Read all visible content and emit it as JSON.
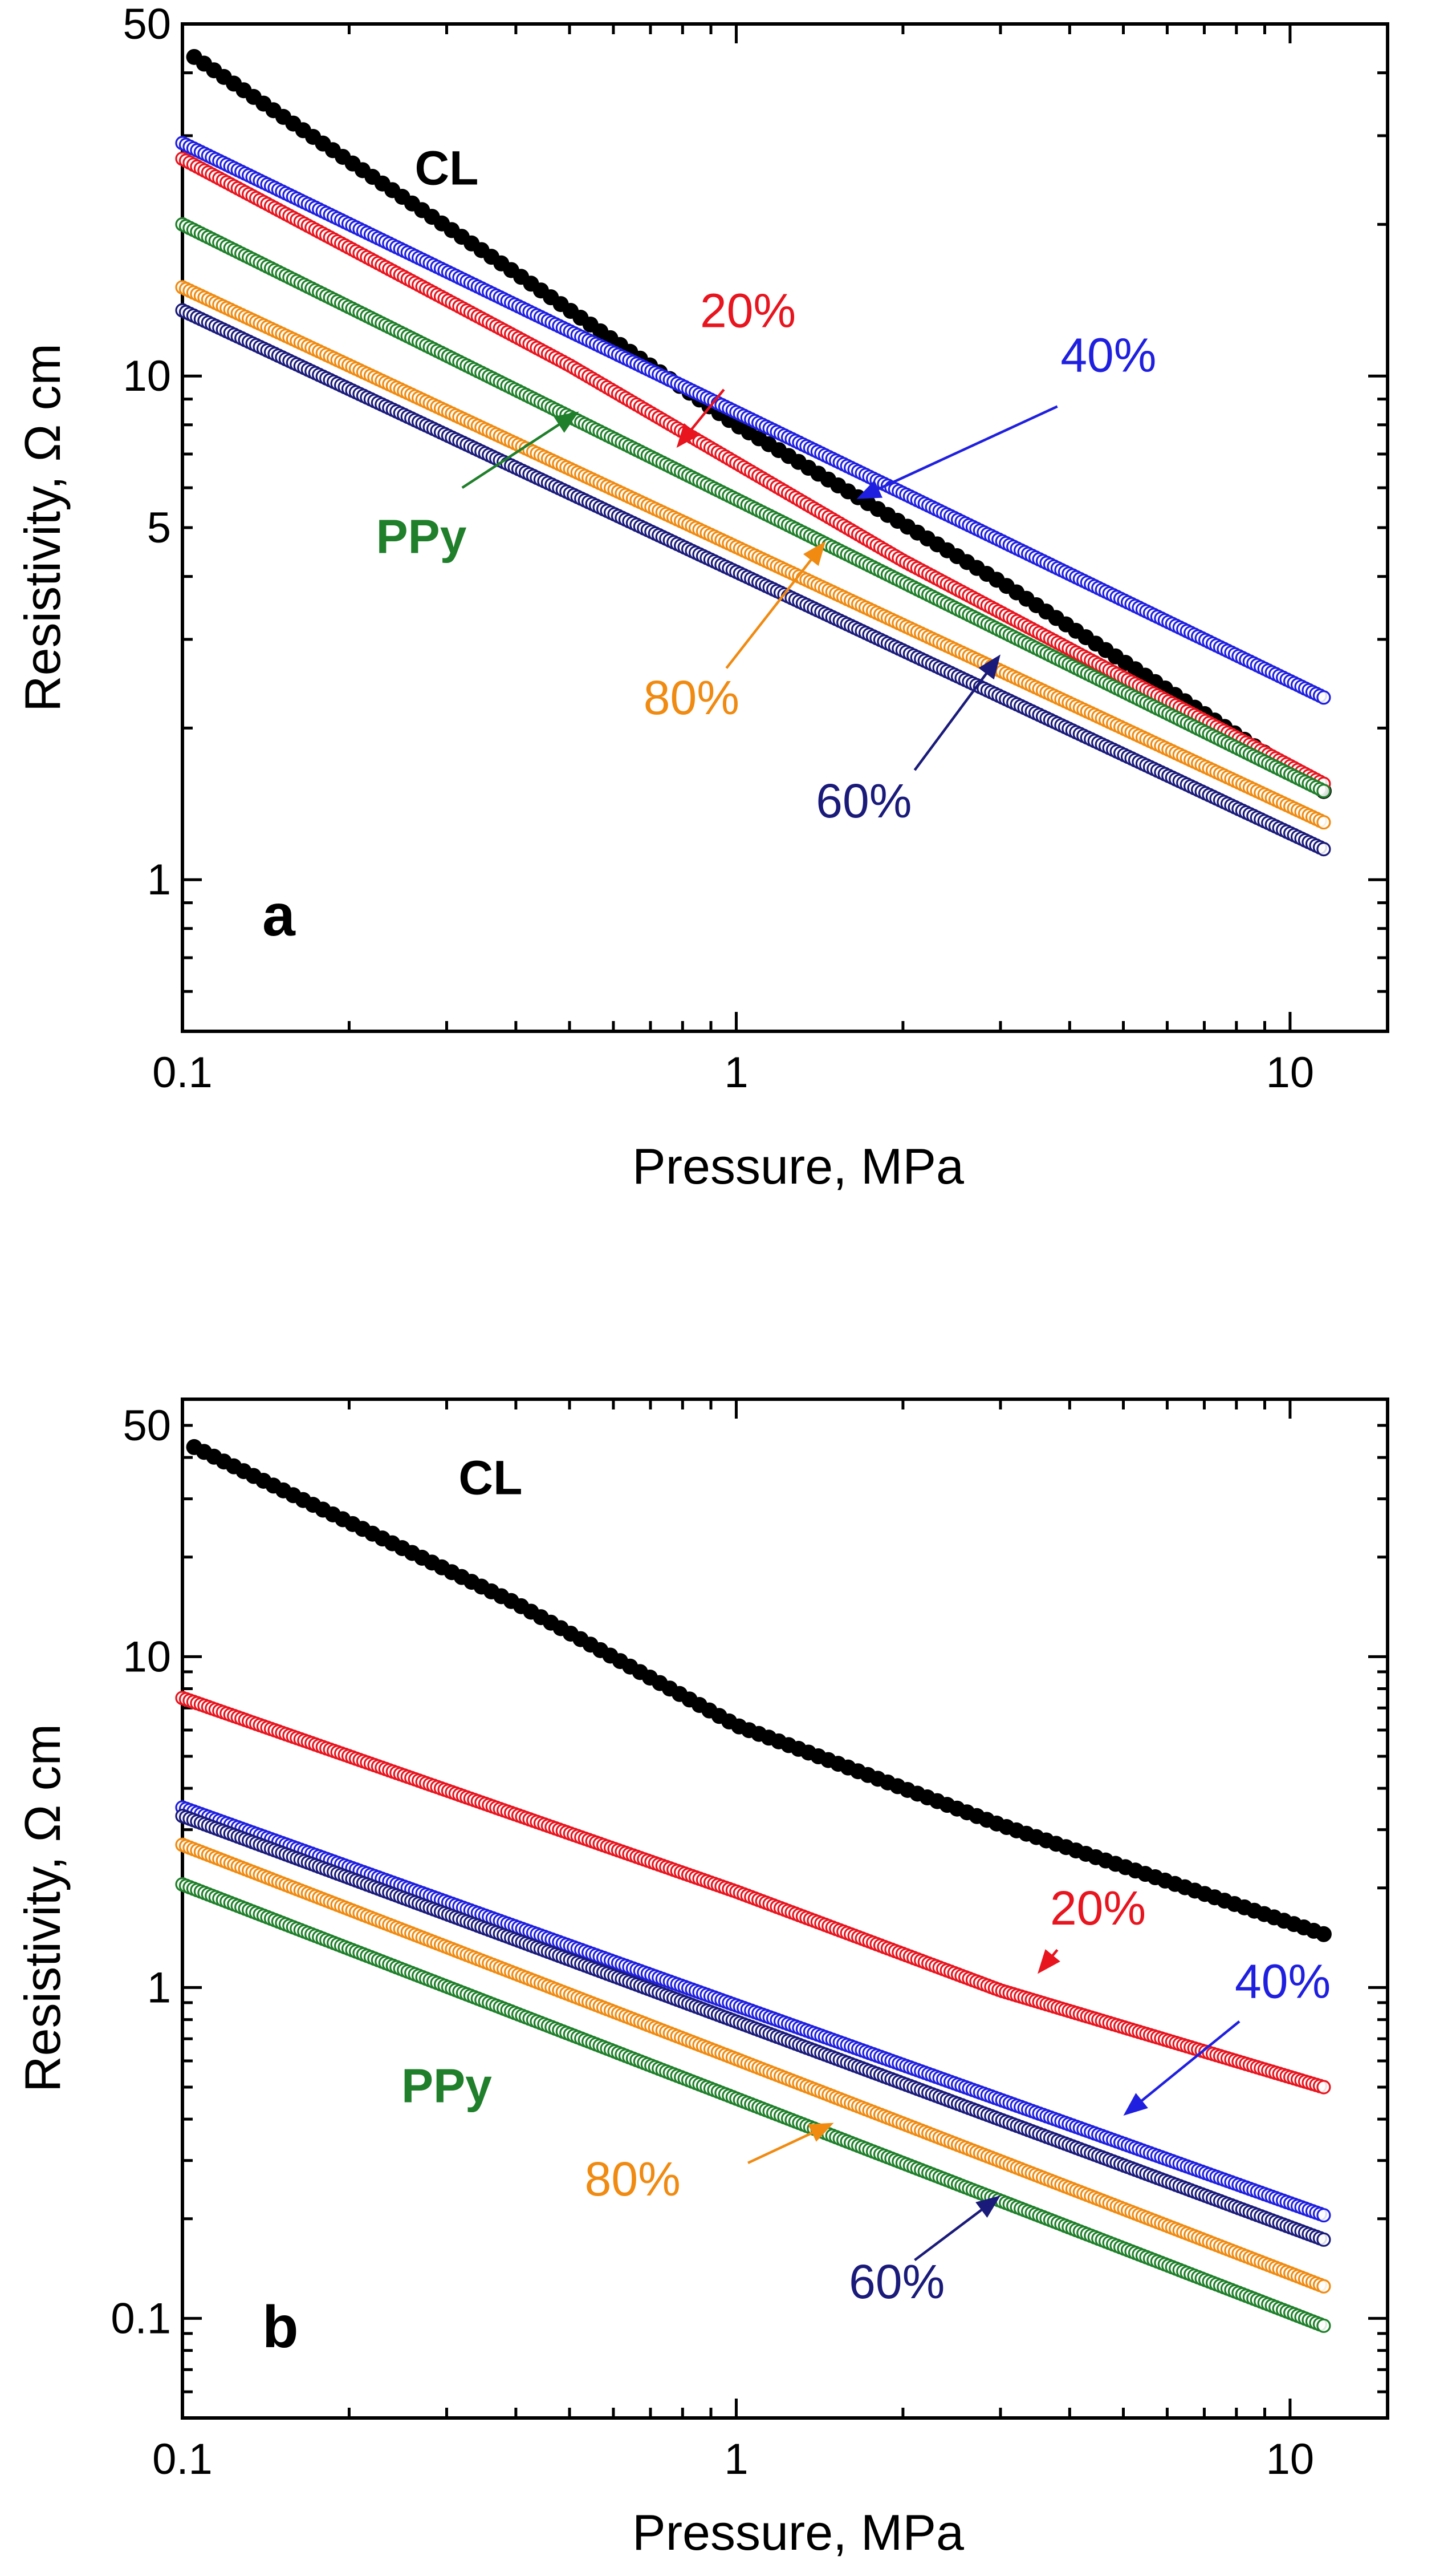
{
  "colors": {
    "CL": "#000000",
    "20%": "#e8141e",
    "40%": "#1f1fe0",
    "60%": "#1a1a7a",
    "80%": "#f08a10",
    "PPy": "#1f7f2a"
  },
  "chart_data": [
    {
      "type": "scatter",
      "panel": "a",
      "xscale": "log",
      "yscale": "log",
      "xlabel": "Pressure, MPa",
      "ylabel": "Resistivity, Ω cm",
      "xlim": [
        0.1,
        15
      ],
      "ylim": [
        0.5,
        50
      ],
      "xtick_labels": [
        {
          "value": 0.1,
          "label": "0.1"
        },
        {
          "value": 1,
          "label": "1"
        },
        {
          "value": 10,
          "label": "10"
        }
      ],
      "ytick_labels": [
        {
          "value": 1,
          "label": "1"
        },
        {
          "value": 5,
          "label": "5"
        },
        {
          "value": 10,
          "label": "10"
        },
        {
          "value": 50,
          "label": "50"
        }
      ],
      "series": [
        {
          "name": "CL",
          "label": "CL",
          "marker": "filled",
          "x_range": [
            0.105,
            11.5
          ],
          "points": [
            [
              0.105,
              43
            ],
            [
              0.4,
              16
            ],
            [
              1.0,
              8.0
            ],
            [
              3.0,
              3.9
            ],
            [
              11.5,
              1.5
            ]
          ],
          "label_at": [
            0.3,
            24
          ]
        },
        {
          "name": "20%",
          "label": "20%",
          "marker": "open",
          "x_range": [
            0.1,
            11.5
          ],
          "points": [
            [
              0.1,
              27
            ],
            [
              0.5,
              10.5
            ],
            [
              2.0,
              4.3
            ],
            [
              11.5,
              1.55
            ]
          ],
          "label_at": [
            1.05,
            12.5
          ],
          "arrow": {
            "from": [
              0.95,
              9.4
            ],
            "to": [
              0.78,
              7.2
            ]
          }
        },
        {
          "name": "40%",
          "label": "40%",
          "marker": "open",
          "x_range": [
            0.1,
            11.5
          ],
          "points": [
            [
              0.1,
              29
            ],
            [
              11.5,
              2.3
            ]
          ],
          "label_at": [
            4.7,
            10.2
          ],
          "arrow": {
            "from": [
              3.8,
              8.7
            ],
            "to": [
              1.65,
              5.7
            ]
          }
        },
        {
          "name": "60%",
          "label": "60%",
          "marker": "open",
          "x_range": [
            0.1,
            11.5
          ],
          "points": [
            [
              0.1,
              13.5
            ],
            [
              11.5,
              1.15
            ]
          ],
          "label_at": [
            1.7,
            1.33
          ],
          "arrow": {
            "from": [
              2.1,
              1.65
            ],
            "to": [
              3.0,
              2.8
            ]
          }
        },
        {
          "name": "80%",
          "label": "80%",
          "marker": "open",
          "x_range": [
            0.1,
            11.5
          ],
          "points": [
            [
              0.1,
              15
            ],
            [
              11.5,
              1.3
            ]
          ],
          "label_at": [
            0.83,
            2.13
          ],
          "arrow": {
            "from": [
              0.96,
              2.63
            ],
            "to": [
              1.45,
              4.7
            ]
          }
        },
        {
          "name": "PPy",
          "label": "PPy",
          "marker": "open",
          "x_range": [
            0.1,
            11.5
          ],
          "points": [
            [
              0.1,
              20
            ],
            [
              11.5,
              1.5
            ]
          ],
          "label_at": [
            0.27,
            4.45
          ],
          "arrow": {
            "from": [
              0.32,
              6.0
            ],
            "to": [
              0.52,
              8.5
            ]
          }
        }
      ]
    },
    {
      "type": "scatter",
      "panel": "b",
      "xscale": "log",
      "yscale": "log",
      "xlabel": "Pressure, MPa",
      "ylabel": "Resistivity, Ω cm",
      "xlim": [
        0.1,
        15
      ],
      "ylim": [
        0.05,
        60
      ],
      "xtick_labels": [
        {
          "value": 0.1,
          "label": "0.1"
        },
        {
          "value": 1,
          "label": "1"
        },
        {
          "value": 10,
          "label": "10"
        }
      ],
      "ytick_labels": [
        {
          "value": 0.1,
          "label": "0.1"
        },
        {
          "value": 1,
          "label": "1"
        },
        {
          "value": 10,
          "label": "10"
        },
        {
          "value": 50,
          "label": "50"
        }
      ],
      "series": [
        {
          "name": "CL",
          "label": "CL",
          "marker": "filled",
          "x_range": [
            0.105,
            11.5
          ],
          "points": [
            [
              0.105,
              43
            ],
            [
              0.4,
              14.5
            ],
            [
              1.0,
              6.2
            ],
            [
              3.0,
              3.1
            ],
            [
              11.5,
              1.45
            ]
          ],
          "label_at": [
            0.36,
            31
          ]
        },
        {
          "name": "20%",
          "label": "20%",
          "marker": "open",
          "x_range": [
            0.1,
            11.5
          ],
          "points": [
            [
              0.1,
              7.5
            ],
            [
              1.0,
              1.95
            ],
            [
              3.0,
              0.98
            ],
            [
              11.5,
              0.5
            ]
          ],
          "label_at": [
            4.5,
            1.55
          ],
          "arrow": {
            "from": [
              3.8,
              1.3
            ],
            "to": [
              3.5,
              1.1
            ]
          }
        },
        {
          "name": "40%",
          "label": "40%",
          "marker": "open",
          "x_range": [
            0.1,
            11.5
          ],
          "points": [
            [
              0.1,
              3.5
            ],
            [
              11.5,
              0.205
            ]
          ],
          "label_at": [
            9.7,
            0.93
          ],
          "arrow": {
            "from": [
              8.1,
              0.79
            ],
            "to": [
              5.0,
              0.41
            ]
          }
        },
        {
          "name": "60%",
          "label": "60%",
          "marker": "open",
          "x_range": [
            0.1,
            11.5
          ],
          "points": [
            [
              0.1,
              3.3
            ],
            [
              11.5,
              0.173
            ]
          ],
          "label_at": [
            1.95,
            0.115
          ],
          "arrow": {
            "from": [
              2.1,
              0.15
            ],
            "to": [
              3.0,
              0.235
            ]
          }
        },
        {
          "name": "80%",
          "label": "80%",
          "marker": "open",
          "x_range": [
            0.1,
            11.5
          ],
          "points": [
            [
              0.1,
              2.7
            ],
            [
              11.5,
              0.125
            ]
          ],
          "label_at": [
            0.65,
            0.235
          ],
          "arrow": {
            "from": [
              1.05,
              0.295
            ],
            "to": [
              1.5,
              0.39
            ]
          }
        },
        {
          "name": "PPy",
          "label": "PPy",
          "marker": "open",
          "x_range": [
            0.1,
            11.5
          ],
          "points": [
            [
              0.1,
              2.05
            ],
            [
              11.5,
              0.095
            ]
          ],
          "label_at": [
            0.3,
            0.45
          ]
        }
      ]
    }
  ]
}
